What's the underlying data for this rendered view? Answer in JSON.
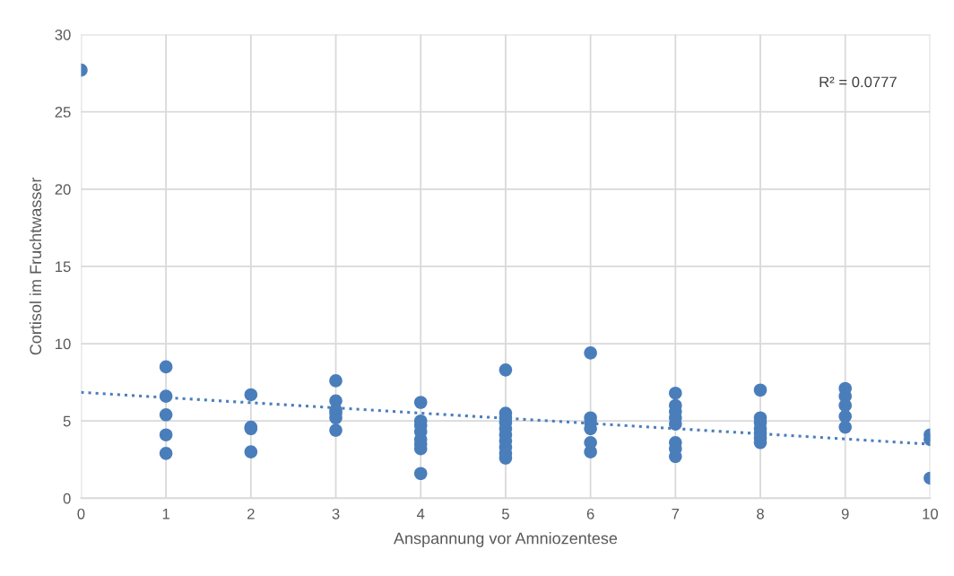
{
  "chart_data": {
    "type": "scatter",
    "xlabel": "Anspannung vor Amniozentese",
    "ylabel": "Cortisol im Fruchtwasser",
    "xlim": [
      0,
      10
    ],
    "ylim": [
      0,
      30
    ],
    "xticks": [
      0,
      1,
      2,
      3,
      4,
      5,
      6,
      7,
      8,
      9,
      10
    ],
    "yticks": [
      0,
      5,
      10,
      15,
      20,
      25,
      30
    ],
    "grid": true,
    "marker": "circle",
    "annotations": [
      "R² = 0.0777"
    ],
    "series": [
      {
        "color": "#4a7ebb",
        "x": [
          0,
          1,
          1,
          1,
          1,
          1,
          2,
          2,
          2,
          2,
          3,
          3,
          3,
          3,
          3,
          3,
          4,
          4,
          4,
          4,
          4,
          4,
          4,
          4,
          5,
          5,
          5,
          5,
          5,
          5,
          5,
          5,
          5,
          5,
          6,
          6,
          6,
          6,
          6,
          6,
          7,
          7,
          7,
          7,
          7,
          7,
          7,
          7,
          8,
          8,
          8,
          8,
          8,
          8,
          8,
          9,
          9,
          9,
          9,
          9,
          10,
          10,
          10
        ],
        "values": [
          27.7,
          8.5,
          6.6,
          5.4,
          4.1,
          2.9,
          6.7,
          4.6,
          4.5,
          3.0,
          7.6,
          6.3,
          5.7,
          5.5,
          5.2,
          4.4,
          6.2,
          5.0,
          4.7,
          4.3,
          3.8,
          3.5,
          3.2,
          1.6,
          8.3,
          5.5,
          5.2,
          4.9,
          4.5,
          4.1,
          3.7,
          3.3,
          2.9,
          2.6,
          9.4,
          5.2,
          4.9,
          4.5,
          3.6,
          3.0,
          6.8,
          6.0,
          5.6,
          5.2,
          4.8,
          3.6,
          3.2,
          2.7,
          7.0,
          5.2,
          4.9,
          4.5,
          4.2,
          3.9,
          3.6,
          7.1,
          6.6,
          6.0,
          5.3,
          4.6,
          4.1,
          3.8,
          1.3
        ]
      },
      {
        "type": "line",
        "color": "#4a7ebb",
        "line_style": "dotted",
        "marker": "none",
        "x": [
          0,
          10
        ],
        "values": [
          6.85,
          3.5
        ]
      }
    ]
  }
}
